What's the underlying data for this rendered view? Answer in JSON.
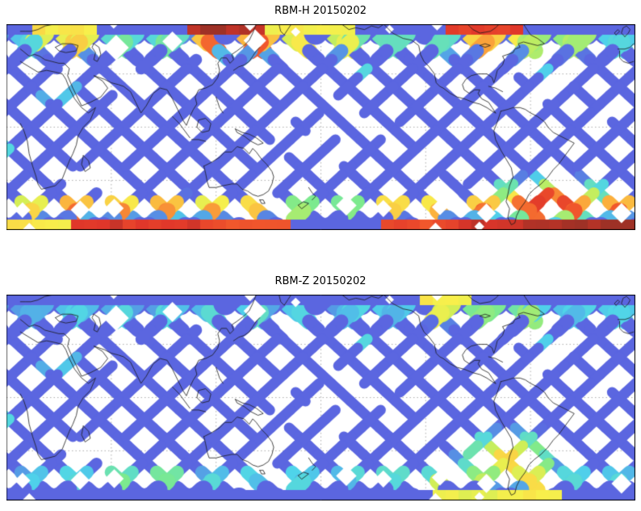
{
  "figure": {
    "background": "#ffffff",
    "map_border_color": "#000000",
    "coastline_color": "#1a1a1a",
    "gridline_color": "#999999"
  },
  "colormap_stops": [
    [
      0,
      "#5b66e0"
    ],
    [
      0.18,
      "#5b66e0"
    ],
    [
      0.3,
      "#4fd4ea"
    ],
    [
      0.45,
      "#7dea8d"
    ],
    [
      0.58,
      "#cdee58"
    ],
    [
      0.68,
      "#f8ef4b"
    ],
    [
      0.78,
      "#fbaa3c"
    ],
    [
      0.88,
      "#f25a2c"
    ],
    [
      0.95,
      "#e0362a"
    ],
    [
      1,
      "#9e3126"
    ]
  ],
  "chart_data": [
    {
      "type": "heatmap",
      "title": "RBM-H 20150202",
      "projection": "equirectangular world map",
      "lon_range_deg": [
        0,
        360
      ],
      "lat_range_deg": [
        -58,
        58
      ],
      "gridline_lons_deg": [
        60,
        120,
        180,
        240,
        300
      ],
      "gridline_lats_deg": [
        30,
        0,
        -30
      ],
      "grid": "dotted",
      "legend": "none",
      "pattern": "diagonal satellite ground-track lattice with white diamond gaps between passes",
      "colormap": "jet-like: blue = low, cyan/green/yellow = moderate, red/dark red = high",
      "low_latitude_level": "low (blue)",
      "auroral_profile": {
        "north": [
          [
            0,
            0.05,
            0.4
          ],
          [
            0.05,
            0.15,
            0.8
          ],
          [
            0.15,
            0.28,
            0.45
          ],
          [
            0.28,
            0.42,
            0.97
          ],
          [
            0.42,
            0.55,
            0.75
          ],
          [
            0.55,
            0.7,
            0.45
          ],
          [
            0.7,
            0.82,
            0.9
          ],
          [
            0.82,
            0.92,
            0.6
          ],
          [
            0.92,
            1,
            0.35
          ]
        ],
        "south": [
          [
            0,
            0.1,
            0.8
          ],
          [
            0.1,
            0.3,
            0.92
          ],
          [
            0.3,
            0.45,
            0.85
          ],
          [
            0.45,
            0.6,
            0.55
          ],
          [
            0.6,
            0.72,
            0.85
          ],
          [
            0.72,
            0.85,
            0.97
          ],
          [
            0.85,
            1,
            1.0
          ]
        ]
      },
      "hotspot": {
        "u": 0.86,
        "t": 0.76,
        "su": 0.1,
        "st": 0.22,
        "intensity": 1.0
      },
      "features": [
        "strong enhancement along both high-latitude bands",
        "most intense (dark red) region at bottom right, south-east sector near South America",
        "red/orange patches reach the top edge near the centre and right of the map",
        "polar edge strips return to low values (blue)"
      ]
    },
    {
      "type": "heatmap",
      "title": "RBM-Z 20150202",
      "projection": "equirectangular world map",
      "lon_range_deg": [
        0,
        360
      ],
      "lat_range_deg": [
        -58,
        58
      ],
      "gridline_lons_deg": [
        60,
        120,
        180,
        240,
        300
      ],
      "gridline_lats_deg": [
        30,
        0,
        -30
      ],
      "grid": "dotted",
      "legend": "none",
      "pattern": "diagonal satellite ground-track lattice with white diamond gaps between passes",
      "colormap": "jet-like: blue = low, cyan/green/yellow = moderate, red/dark red = high",
      "low_latitude_level": "low (blue)",
      "auroral_profile": {
        "north": [
          [
            0,
            0.28,
            0.22
          ],
          [
            0.28,
            0.4,
            0.38
          ],
          [
            0.4,
            0.66,
            0.22
          ],
          [
            0.66,
            0.74,
            0.75
          ],
          [
            0.74,
            0.84,
            0.55
          ],
          [
            0.84,
            1,
            0.25
          ]
        ],
        "south": [
          [
            0,
            0.16,
            0.32
          ],
          [
            0.16,
            0.28,
            0.5
          ],
          [
            0.28,
            0.55,
            0.32
          ],
          [
            0.55,
            0.68,
            0.4
          ],
          [
            0.68,
            0.78,
            0.65
          ],
          [
            0.78,
            0.88,
            0.8
          ],
          [
            0.88,
            1,
            0.38
          ]
        ]
      },
      "hotspot": {
        "u": 0.8,
        "t": 0.62,
        "su": 0.08,
        "st": 0.28,
        "intensity": 0.72
      },
      "features": [
        "high-latitude bands mostly cyan/green, much weaker than RBM-H",
        "moderate yellow/orange enhancement near South America (bottom right) and top right of centre",
        "solid blue strips along the top and bottom map edges"
      ]
    }
  ]
}
